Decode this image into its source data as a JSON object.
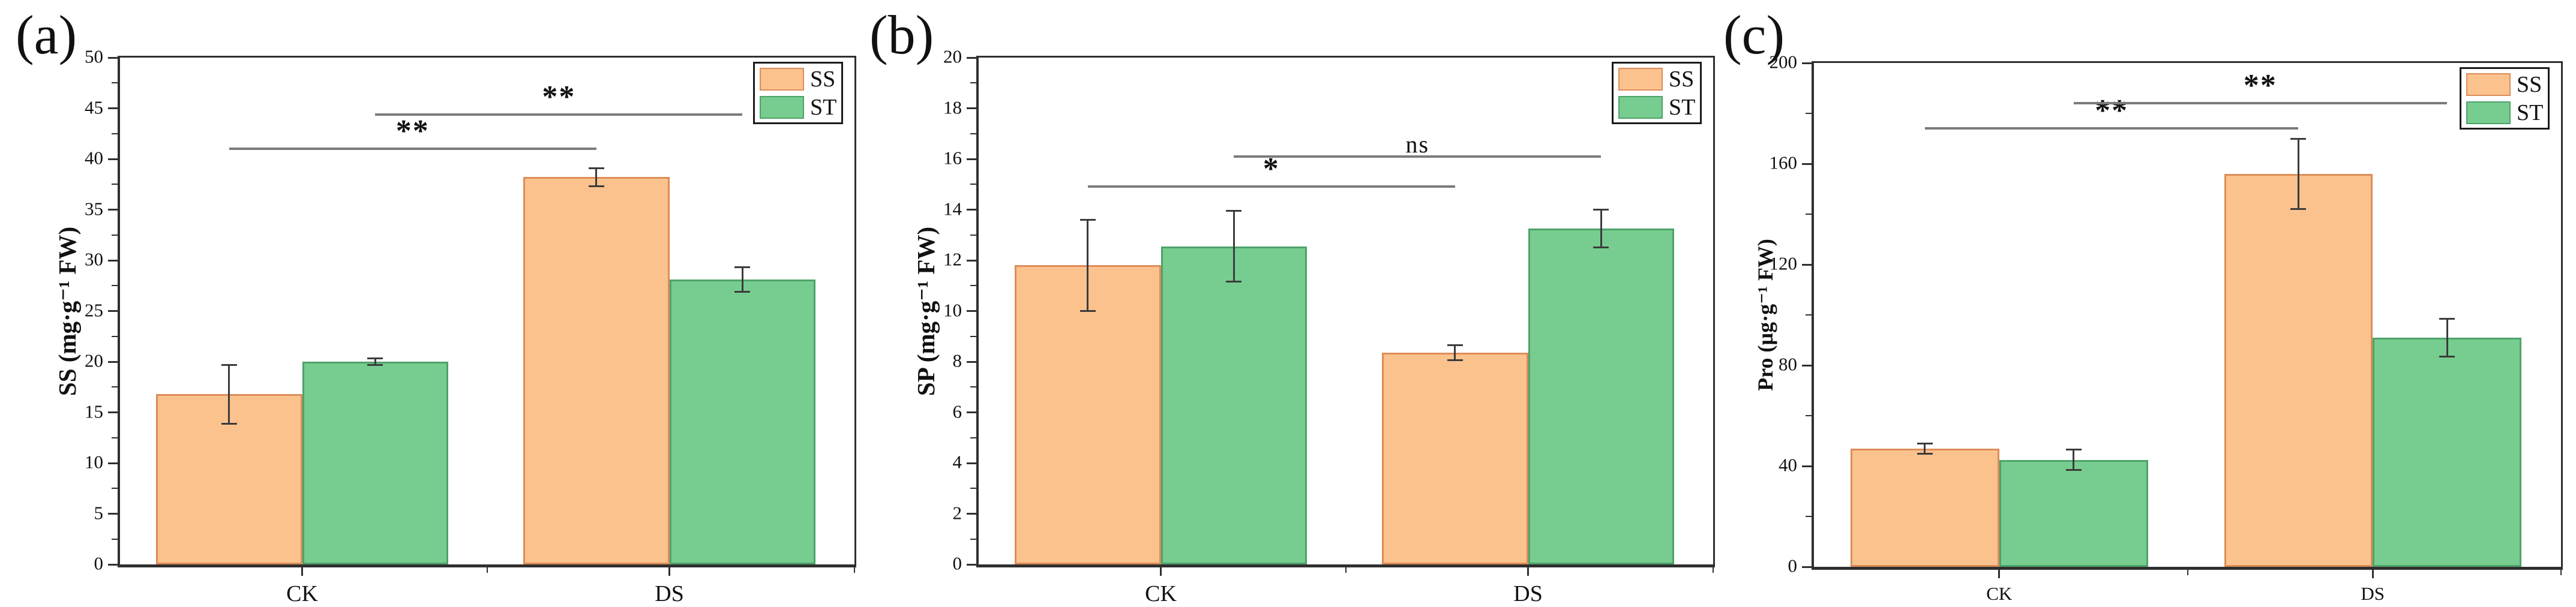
{
  "chart_data": [
    {
      "type": "bar",
      "panel_label": "(a)",
      "title": "",
      "xlabel": "",
      "ylabel": "SS (mg·g⁻¹ FW)",
      "categories": [
        "CK",
        "DS"
      ],
      "series": [
        {
          "name": "SS",
          "values": [
            16.8,
            38.2
          ],
          "errors": [
            2.9,
            0.9
          ]
        },
        {
          "name": "ST",
          "values": [
            20.0,
            28.1
          ],
          "errors": [
            0.3,
            1.2
          ]
        }
      ],
      "ylim": [
        0,
        50
      ],
      "ytick_step": 5,
      "yminor_step": 2.5,
      "ytick_labels": [
        "0",
        "5",
        "10",
        "15",
        "20",
        "25",
        "30",
        "35",
        "40",
        "45",
        "50"
      ],
      "grid": false,
      "legend": {
        "position": "top-right",
        "entries": [
          "SS",
          "ST"
        ]
      },
      "significance": [
        {
          "series": "SS",
          "from": "CK",
          "to": "DS",
          "label": "**",
          "line_y": 41.0
        },
        {
          "series": "ST",
          "from": "CK",
          "to": "DS",
          "label": "**",
          "line_y": 44.4
        }
      ]
    },
    {
      "type": "bar",
      "panel_label": "(b)",
      "title": "",
      "xlabel": "",
      "ylabel": "SP (mg·g⁻¹ FW)",
      "categories": [
        "CK",
        "DS"
      ],
      "series": [
        {
          "name": "SS",
          "values": [
            11.8,
            8.35
          ],
          "errors": [
            1.8,
            0.3
          ]
        },
        {
          "name": "ST",
          "values": [
            12.55,
            13.25
          ],
          "errors": [
            1.4,
            0.75
          ]
        }
      ],
      "ylim": [
        0,
        20
      ],
      "ytick_step": 2,
      "yminor_step": 1,
      "ytick_labels": [
        "0",
        "2",
        "4",
        "6",
        "8",
        "10",
        "12",
        "14",
        "16",
        "18",
        "20"
      ],
      "grid": false,
      "legend": {
        "position": "top-right",
        "entries": [
          "SS",
          "ST"
        ]
      },
      "significance": [
        {
          "series": "SS",
          "from": "CK",
          "to": "DS",
          "label": "*",
          "line_y": 14.9
        },
        {
          "series": "ST",
          "from": "CK",
          "to": "DS",
          "label": "ns",
          "line_y": 16.1
        }
      ]
    },
    {
      "type": "bar",
      "panel_label": "(c)",
      "title": "",
      "xlabel": "",
      "ylabel": "Pro (µg·g⁻¹ FW)",
      "categories": [
        "CK",
        "DS"
      ],
      "series": [
        {
          "name": "SS",
          "values": [
            47,
            156
          ],
          "errors": [
            2,
            14
          ]
        },
        {
          "name": "ST",
          "values": [
            42.5,
            91
          ],
          "errors": [
            4,
            7.5
          ]
        }
      ],
      "ylim": [
        0,
        200
      ],
      "ytick_step": 40,
      "yminor_step": 20,
      "ytick_labels": [
        "0",
        "40",
        "80",
        "120",
        "160",
        "200"
      ],
      "grid": false,
      "legend": {
        "position": "top-right",
        "entries": [
          "SS",
          "ST"
        ]
      },
      "significance": [
        {
          "series": "SS",
          "from": "CK",
          "to": "DS",
          "label": "**",
          "line_y": 174
        },
        {
          "series": "ST",
          "from": "CK",
          "to": "DS",
          "label": "**",
          "line_y": 184
        }
      ]
    }
  ],
  "style": {
    "bar_fill": {
      "SS": "#fbc28e",
      "ST": "#77cd8f"
    },
    "bar_border": {
      "SS": "#dd8c58",
      "ST": "#4da26a"
    },
    "sig_line_color": "#7b7b7b",
    "error_bar_color": "#3b3b3b",
    "axis_color": "#2f2f2f",
    "text_color": "#111111",
    "background": "#ffffff"
  }
}
